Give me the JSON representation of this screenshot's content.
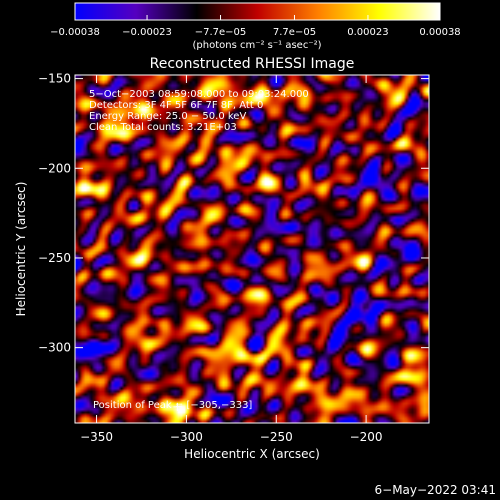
{
  "chart_data": {
    "type": "heatmap",
    "title": "Reconstructed RHESSI Image",
    "xlabel": "Heliocentric X (arcsec)",
    "ylabel": "Heliocentric Y (arcsec)",
    "xlim": [
      -362,
      -165
    ],
    "ylim": [
      -342,
      -148
    ],
    "x_ticks": [
      -350,
      -300,
      -250,
      -200
    ],
    "x_tick_labels": [
      "−350",
      "−300",
      "−250",
      "−200"
    ],
    "y_ticks": [
      -300,
      -250,
      -200,
      -150
    ],
    "y_tick_labels": [
      "−300",
      "−250",
      "−200",
      "−150"
    ],
    "colorbar": {
      "label": "(photons cm⁻² s⁻¹ asec⁻²)",
      "range": [
        -0.00038,
        0.00038
      ],
      "ticks": [
        -0.00038,
        -0.00023,
        -7.7e-05,
        7.7e-05,
        0.00023,
        0.00038
      ],
      "tick_labels": [
        "−0.00038",
        "−0.00023",
        "−7.7e−05",
        "7.7e−05",
        "0.00023",
        "0.00038"
      ],
      "colors": [
        "#0000ff",
        "#5500c0",
        "#000000",
        "#c00000",
        "#ff8000",
        "#ffff00",
        "#ffffff"
      ]
    },
    "annotations": {
      "time": "5−Oct−2003 08:59:08.000 to 09:03:24.000",
      "detectors": "Detectors: 3F 4F 5F 6F 7F 8F, Att 0",
      "energy": "Energy Range: 25.0 − 50.0 keV",
      "clean": "Clean     Total counts: 3.21E+03",
      "peak": "Position of Peak = [−305,−333]"
    },
    "peak": [
      -305,
      -333
    ],
    "sources": [
      {
        "x": -340,
        "y": -175,
        "value": 0.00022,
        "sx": 9,
        "sy": 8
      },
      {
        "x": -322,
        "y": -162,
        "value": 0.0002,
        "sx": 9,
        "sy": 7
      },
      {
        "x": -300,
        "y": -170,
        "value": 0.00018,
        "sx": 7,
        "sy": 6
      },
      {
        "x": -282,
        "y": -156,
        "value": 0.00022,
        "sx": 7,
        "sy": 6
      },
      {
        "x": -262,
        "y": -160,
        "value": 0.00019,
        "sx": 8,
        "sy": 6
      },
      {
        "x": -245,
        "y": -155,
        "value": 0.00017,
        "sx": 6,
        "sy": 5
      },
      {
        "x": -222,
        "y": -158,
        "value": 0.00018,
        "sx": 6,
        "sy": 5
      },
      {
        "x": -185,
        "y": -158,
        "value": 0.00016,
        "sx": 6,
        "sy": 5
      },
      {
        "x": -310,
        "y": -195,
        "value": 0.00017,
        "sx": 6,
        "sy": 6
      },
      {
        "x": -278,
        "y": -195,
        "value": 0.00021,
        "sx": 7,
        "sy": 8
      },
      {
        "x": -255,
        "y": -210,
        "value": 0.00015,
        "sx": 6,
        "sy": 6
      },
      {
        "x": -350,
        "y": -215,
        "value": 0.00019,
        "sx": 7,
        "sy": 8
      },
      {
        "x": -325,
        "y": -228,
        "value": 0.00013,
        "sx": 6,
        "sy": 6
      },
      {
        "x": -300,
        "y": -220,
        "value": 0.00012,
        "sx": 5,
        "sy": 5
      },
      {
        "x": -318,
        "y": -252,
        "value": 0.00018,
        "sx": 7,
        "sy": 7
      },
      {
        "x": -290,
        "y": -245,
        "value": 0.00019,
        "sx": 6,
        "sy": 7
      },
      {
        "x": -232,
        "y": -252,
        "value": 0.0002,
        "sx": 7,
        "sy": 7
      },
      {
        "x": -250,
        "y": -272,
        "value": 0.00014,
        "sx": 6,
        "sy": 6
      },
      {
        "x": -203,
        "y": -248,
        "value": 0.00011,
        "sx": 6,
        "sy": 5
      },
      {
        "x": -325,
        "y": -290,
        "value": 0.00017,
        "sx": 7,
        "sy": 6
      },
      {
        "x": -298,
        "y": -285,
        "value": 0.00022,
        "sx": 6,
        "sy": 6
      },
      {
        "x": -272,
        "y": -300,
        "value": 0.00028,
        "sx": 7,
        "sy": 7
      },
      {
        "x": -245,
        "y": -300,
        "value": 0.00024,
        "sx": 6,
        "sy": 6
      },
      {
        "x": -272,
        "y": -318,
        "value": 0.0002,
        "sx": 6,
        "sy": 6
      },
      {
        "x": -305,
        "y": -333,
        "value": 0.00038,
        "sx": 6,
        "sy": 6
      },
      {
        "x": -330,
        "y": -335,
        "value": 0.00021,
        "sx": 6,
        "sy": 5
      },
      {
        "x": -230,
        "y": -325,
        "value": 0.00025,
        "sx": 8,
        "sy": 6
      },
      {
        "x": -200,
        "y": -330,
        "value": 0.00019,
        "sx": 7,
        "sy": 6
      },
      {
        "x": -172,
        "y": -318,
        "value": 0.00033,
        "sx": 5,
        "sy": 9
      },
      {
        "x": -350,
        "y": -318,
        "value": 0.00012,
        "sx": 6,
        "sy": 5
      },
      {
        "x": -240,
        "y": -240,
        "value": -0.0002,
        "sx": 10,
        "sy": 8
      },
      {
        "x": -205,
        "y": -280,
        "value": -0.00018,
        "sx": 9,
        "sy": 9
      },
      {
        "x": -355,
        "y": -300,
        "value": -0.00016,
        "sx": 9,
        "sy": 8
      },
      {
        "x": -190,
        "y": -210,
        "value": -0.00015,
        "sx": 8,
        "sy": 8
      },
      {
        "x": -270,
        "y": -335,
        "value": -0.0002,
        "sx": 7,
        "sy": 5
      },
      {
        "x": -300,
        "y": -265,
        "value": -0.00016,
        "sx": 8,
        "sy": 6
      },
      {
        "x": -215,
        "y": -300,
        "value": -0.00013,
        "sx": 6,
        "sy": 6
      },
      {
        "x": -175,
        "y": -255,
        "value": -0.00014,
        "sx": 8,
        "sy": 8
      }
    ]
  },
  "footer": {
    "date": "6−May−2022 03:41"
  }
}
